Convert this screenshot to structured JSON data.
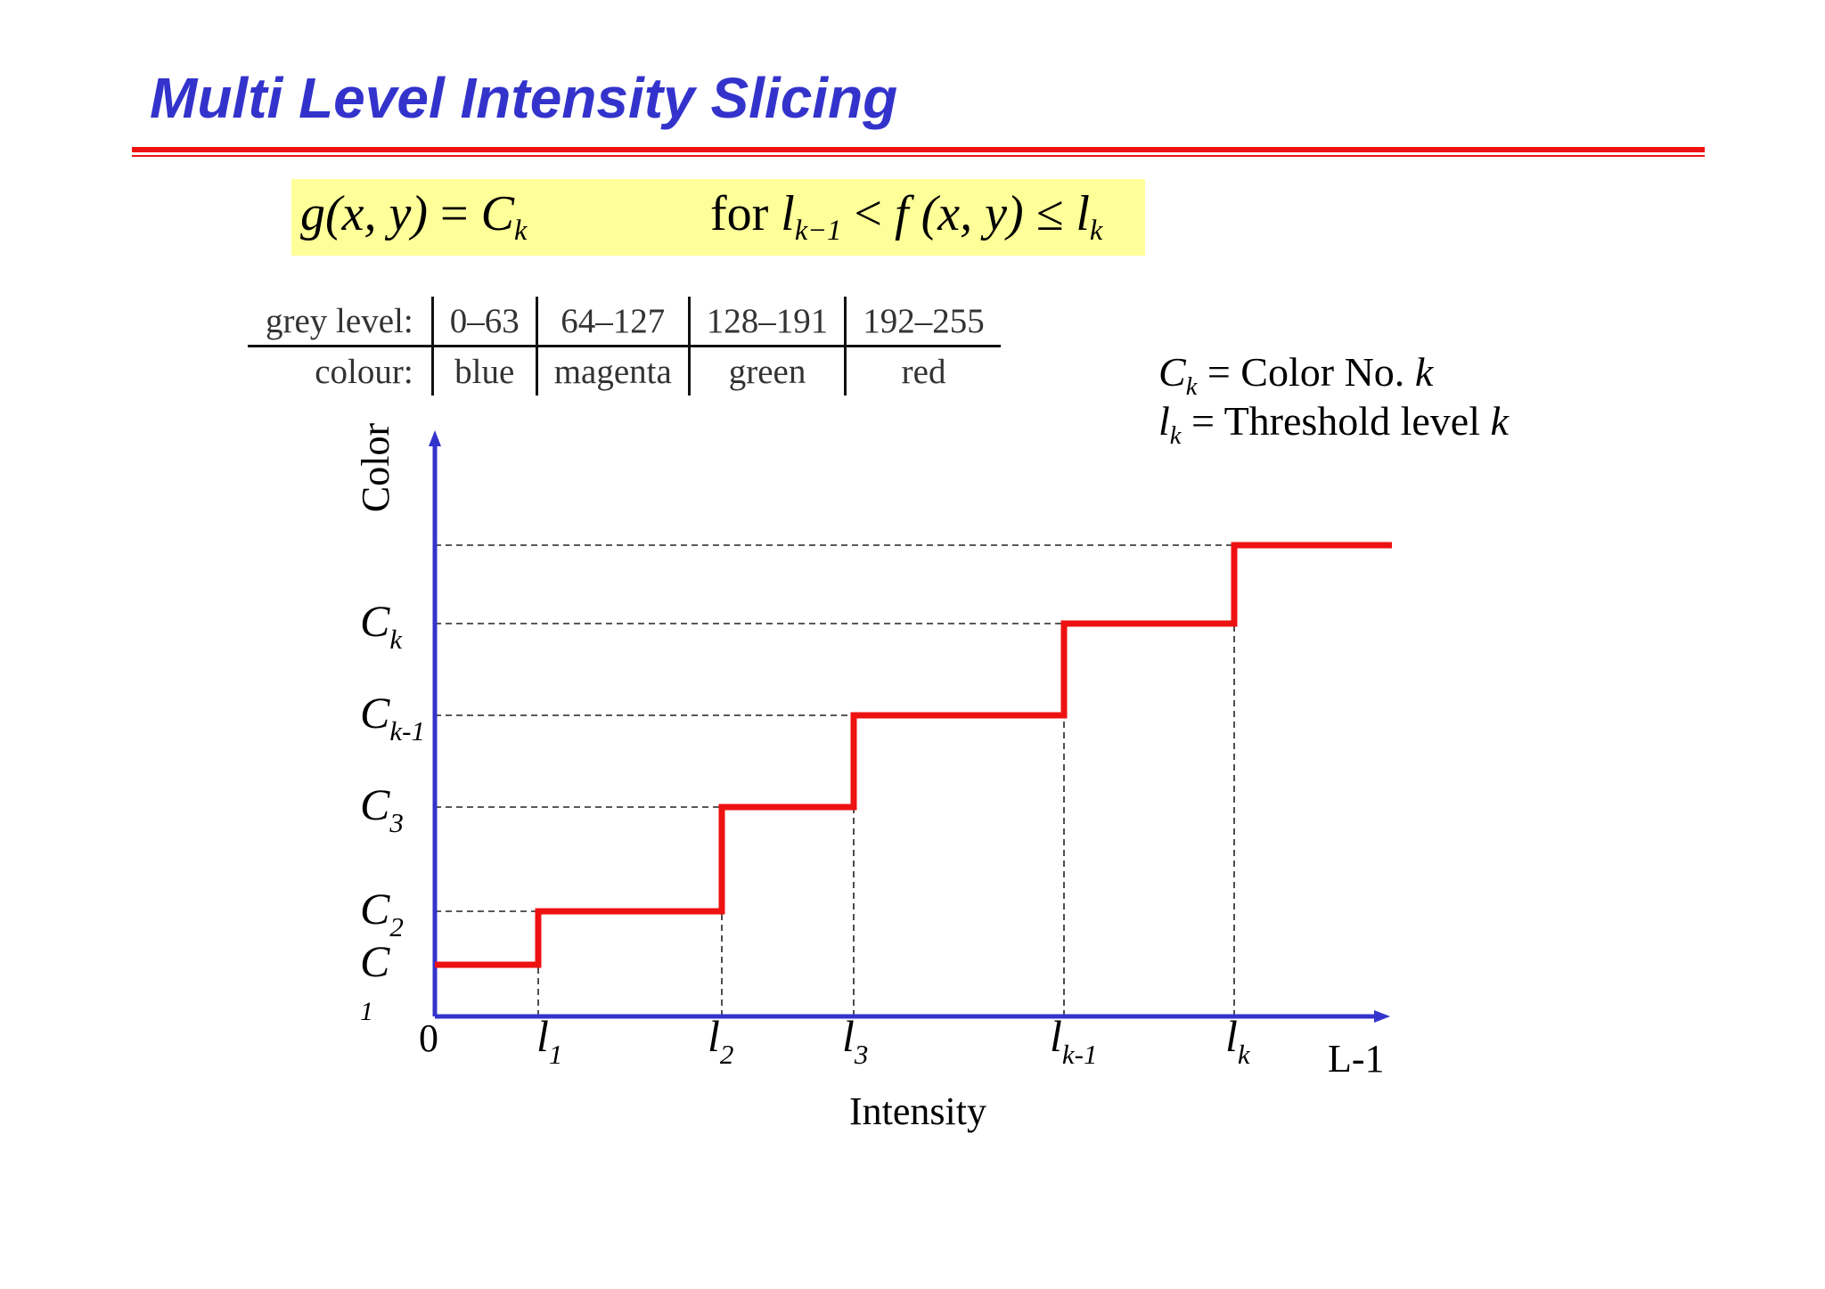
{
  "title": "Multi Level Intensity Slicing",
  "formula": {
    "lhs_g": "g",
    "lhs_args": "(x, y)",
    "lhs_eq": " = ",
    "lhs_c": "C",
    "lhs_c_sub": "k",
    "rhs_for": "for ",
    "rhs_l": "l",
    "rhs_l_sub": "k−1",
    "rhs_lt": " < ",
    "rhs_f": "f",
    "rhs_args": " (x, y) ≤ ",
    "rhs_l2": "l",
    "rhs_l2_sub": "k"
  },
  "grey_table": {
    "row1_header": "grey level:",
    "row2_header": "colour:",
    "levels": [
      "0–63",
      "64–127",
      "128–191",
      "192–255"
    ],
    "colours": [
      "blue",
      "magenta",
      "green",
      "red"
    ]
  },
  "legend": {
    "ck_symbol": "C",
    "ck_sub": "k",
    "ck_text": " = Color No. ",
    "ck_var": "k",
    "lk_symbol": "l",
    "lk_sub": "k",
    "lk_text": " = Threshold level ",
    "lk_var": "k"
  },
  "graph": {
    "y_axis_label": "Color",
    "x_axis_label": "Intensity",
    "origin_label": "0",
    "x_end_label": "L-1",
    "y_ticks": [
      {
        "base": "C",
        "sub": "k"
      },
      {
        "base": "C",
        "sub": "k-1"
      },
      {
        "base": "C",
        "sub": "3"
      },
      {
        "base": "C",
        "sub": "2"
      },
      {
        "base": "C",
        "sub": "1"
      }
    ],
    "x_ticks": [
      {
        "base": "l",
        "sub": "1"
      },
      {
        "base": "l",
        "sub": "2"
      },
      {
        "base": "l",
        "sub": "3"
      },
      {
        "base": "l",
        "sub": "k-1"
      },
      {
        "base": "l",
        "sub": "k"
      }
    ],
    "axis_color": "#3333cc",
    "step_color": "#ee1111",
    "steps": [
      {
        "from": 0,
        "to": 1,
        "level": 1
      },
      {
        "from": 1,
        "to": 2,
        "level": 2
      },
      {
        "from": 2,
        "to": 3,
        "level": 3
      },
      {
        "from": 3,
        "to": 4,
        "level": 4
      },
      {
        "from": 4,
        "to": 5,
        "level": 5
      },
      {
        "from": 5,
        "to": 6,
        "level": 6
      }
    ]
  }
}
